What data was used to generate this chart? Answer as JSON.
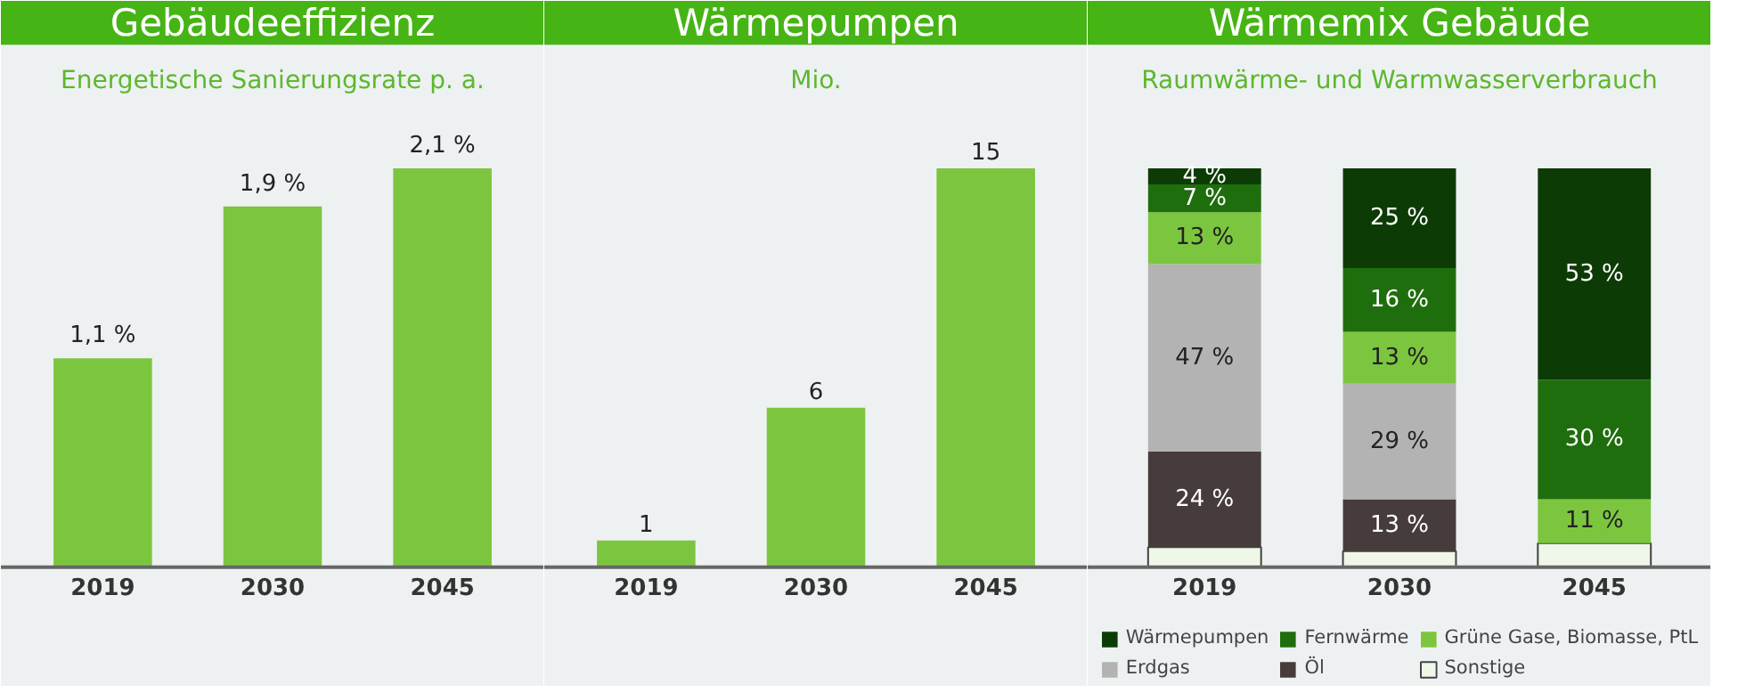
{
  "chart_data": [
    {
      "type": "bar",
      "title": "Gebäudeeffizienz",
      "subtitle": "Energetische Sanierungsrate p. a.",
      "categories": [
        "2019",
        "2030",
        "2045"
      ],
      "values": [
        1.1,
        1.9,
        2.1
      ],
      "value_labels": [
        "1,1 %",
        "1,9 %",
        "2,1 %"
      ],
      "color": "#7cc63f",
      "grid": false
    },
    {
      "type": "bar",
      "title": "Wärmepumpen",
      "subtitle": "Mio.",
      "categories": [
        "2019",
        "2030",
        "2045"
      ],
      "values": [
        1,
        6,
        15
      ],
      "data_labels": true,
      "color": "#7cc63f",
      "grid": false
    },
    {
      "type": "bar",
      "title": "Wärmemix Gebäude",
      "subtitle": "Raumwärme- und Warmwasserverbrauch",
      "categories": [
        "2019",
        "2030",
        "2045"
      ],
      "stacked": true,
      "legend": "bottom",
      "grid": false,
      "series": [
        {
          "name": "Sonstige",
          "color": "#eef7e8",
          "values": [
            5,
            4,
            6
          ],
          "value_labels": [
            null,
            null,
            null
          ]
        },
        {
          "name": "Öl",
          "color": "#463c3c",
          "values": [
            24,
            13,
            0
          ],
          "value_labels": [
            "24 %",
            "13 %",
            null
          ]
        },
        {
          "name": "Erdgas",
          "color": "#b3b3b3",
          "values": [
            47,
            29,
            0
          ],
          "value_labels": [
            "47 %",
            "29 %",
            null
          ]
        },
        {
          "name": "Grüne Gase, Biomasse, PtL",
          "color": "#7cc63f",
          "values": [
            13,
            13,
            11
          ],
          "value_labels": [
            "13 %",
            "13 %",
            "11 %"
          ]
        },
        {
          "name": "Fernwärme",
          "color": "#1f6e0d",
          "values": [
            7,
            16,
            30
          ],
          "value_labels": [
            "7 %",
            "16 %",
            "30 %"
          ]
        },
        {
          "name": "Wärmepumpen",
          "color": "#0d3b05",
          "values": [
            4,
            25,
            53
          ],
          "value_labels": [
            "4 %",
            "25 %",
            "53 %"
          ]
        }
      ]
    }
  ]
}
